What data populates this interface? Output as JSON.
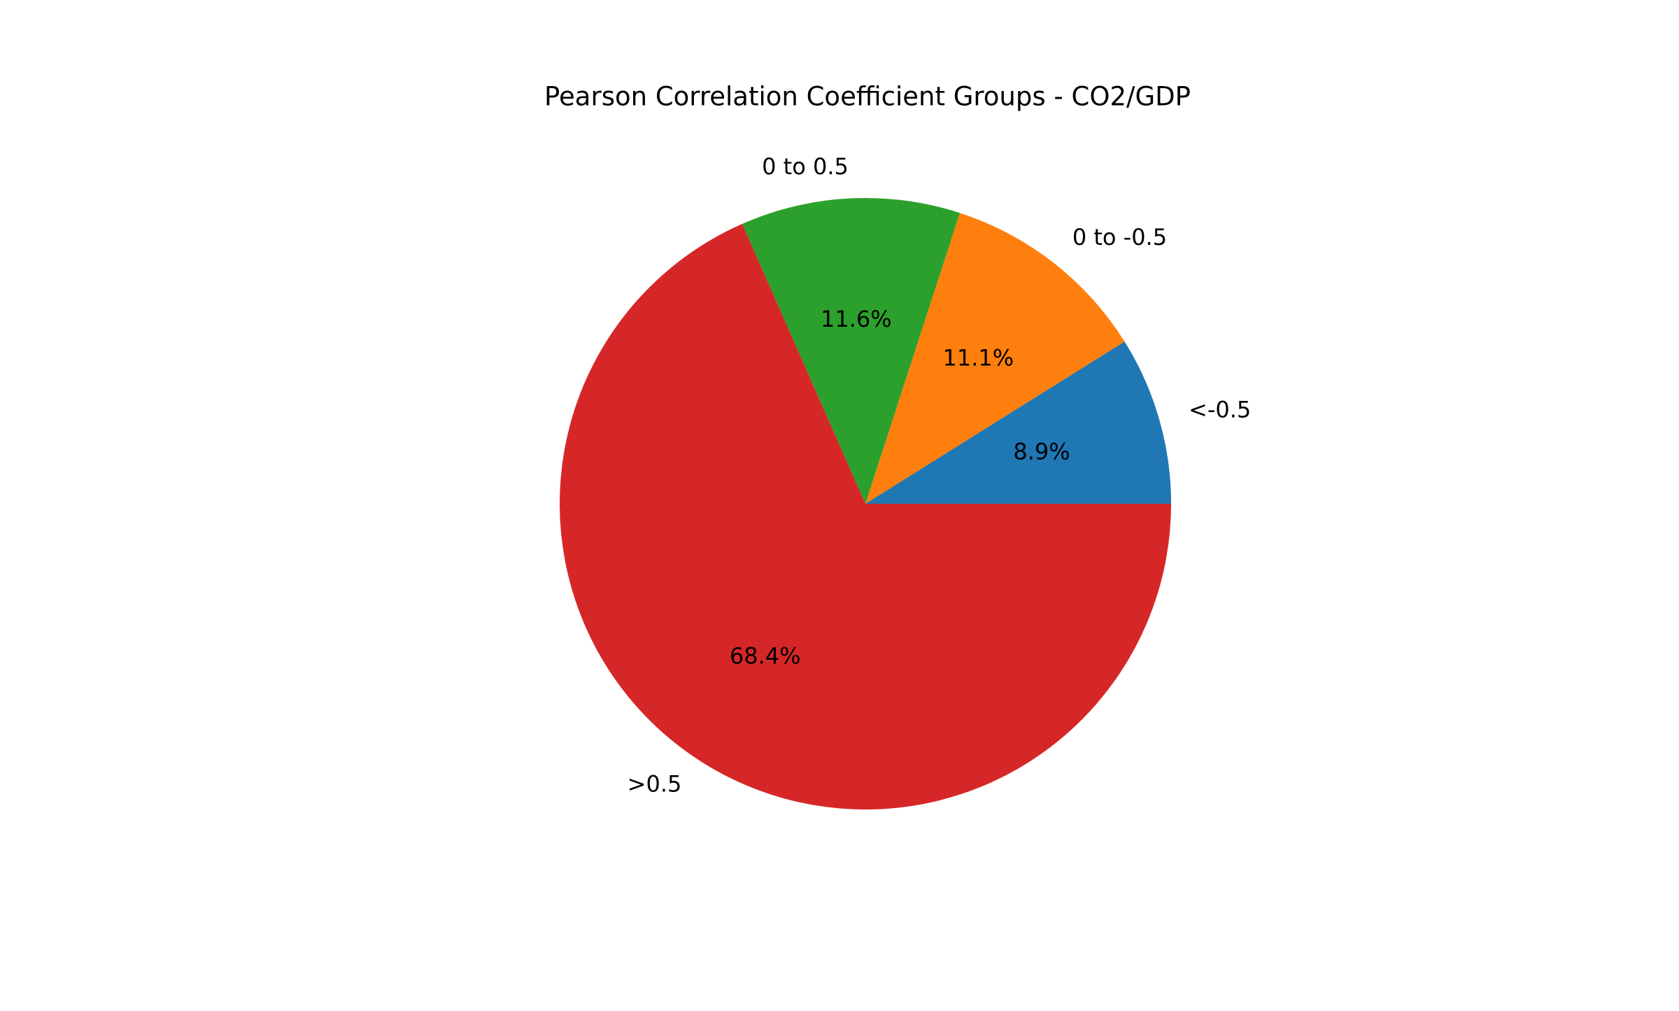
{
  "chart_data": {
    "type": "pie",
    "title": "Pearson Correlation Coefficient Groups - CO2/GDP",
    "slices": [
      {
        "label": "<-0.5",
        "value": 8.9,
        "pct_label": "8.9%",
        "color": "#1f77b4"
      },
      {
        "label": "0 to -0.5",
        "value": 11.1,
        "pct_label": "11.1%",
        "color": "#ff7f0e"
      },
      {
        "label": "0 to 0.5",
        "value": 11.6,
        "pct_label": "11.6%",
        "color": "#2ca02c"
      },
      {
        "label": ">0.5",
        "value": 68.4,
        "pct_label": "68.4%",
        "color": "#d62728"
      }
    ],
    "start_angle_deg": 0,
    "direction": "counterclockwise",
    "legend": "none"
  }
}
